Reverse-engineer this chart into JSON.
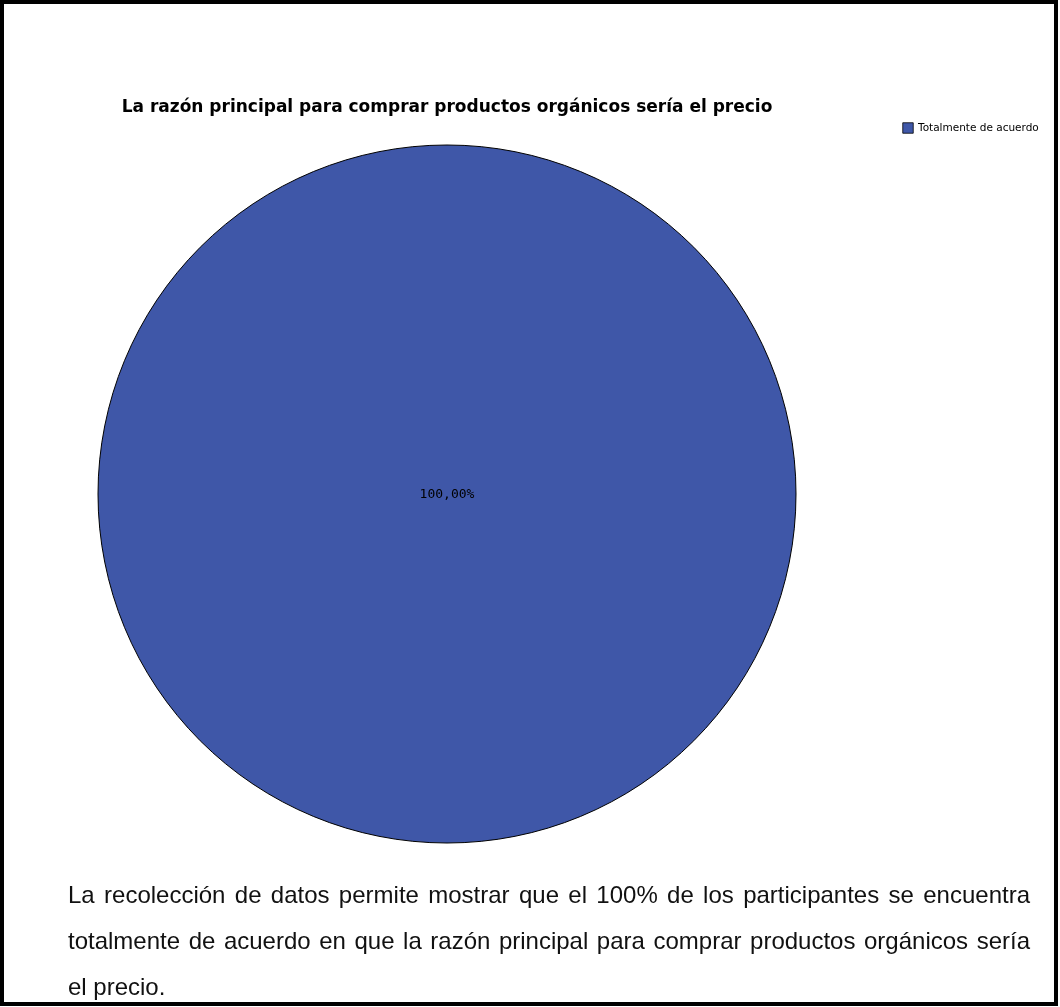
{
  "chart_data": {
    "type": "pie",
    "title": "La razón principal para comprar productos orgánicos sería el precio",
    "categories": [
      "Totalmente de acuerdo"
    ],
    "values": [
      100
    ],
    "colors": [
      "#3f57a8"
    ],
    "value_labels": [
      "100,00%"
    ],
    "legend": "top right",
    "annotations": [
      "La recolección de datos permite mostrar que el 100% de los participantes se encuentra totalmente de acuerdo en que la razón principal para comprar productos orgánicos sería el precio."
    ]
  }
}
